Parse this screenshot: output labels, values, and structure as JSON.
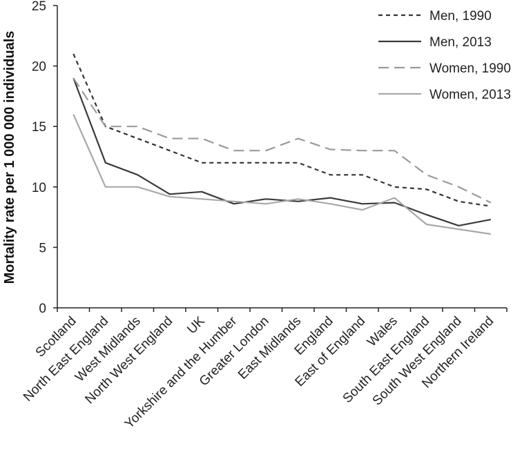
{
  "chart_data": {
    "type": "line",
    "title": "",
    "xlabel": "",
    "ylabel": "Mortality rate per 1 000 000 individuals",
    "ylim": [
      0,
      25
    ],
    "yticks": [
      0,
      5,
      10,
      15,
      20,
      25
    ],
    "grid": false,
    "legend": "top-right",
    "categories": [
      "Scotland",
      "North East England",
      "West Midlands",
      "North West England",
      "UK",
      "Yorkshire and the Humber",
      "Greater London",
      "East Midlands",
      "England",
      "East of England",
      "Wales",
      "South East England",
      "South West England",
      "Northern Ireland"
    ],
    "series": [
      {
        "name": "Men, 1990",
        "style": "dotted",
        "color": "#333333",
        "values": [
          21,
          15,
          14,
          13,
          12,
          12,
          12,
          12,
          11,
          11,
          10,
          9.8,
          8.8,
          8.4
        ]
      },
      {
        "name": "Men, 2013",
        "style": "solid",
        "color": "#3a3a3a",
        "values": [
          19,
          12,
          11,
          9.4,
          9.6,
          8.6,
          9.0,
          8.8,
          9.1,
          8.6,
          8.7,
          7.7,
          6.8,
          7.3
        ]
      },
      {
        "name": "Women, 1990",
        "style": "dashed",
        "color": "#9a9a9a",
        "values": [
          19,
          15,
          15,
          14,
          14,
          13,
          13,
          14,
          13.1,
          13,
          13,
          11,
          10,
          8.7
        ]
      },
      {
        "name": "Women, 2013",
        "style": "solid",
        "color": "#a8a8a8",
        "values": [
          16,
          10,
          10,
          9.2,
          9.0,
          8.8,
          8.6,
          9.0,
          8.6,
          8.1,
          9.1,
          6.9,
          6.5,
          6.1
        ]
      }
    ]
  }
}
